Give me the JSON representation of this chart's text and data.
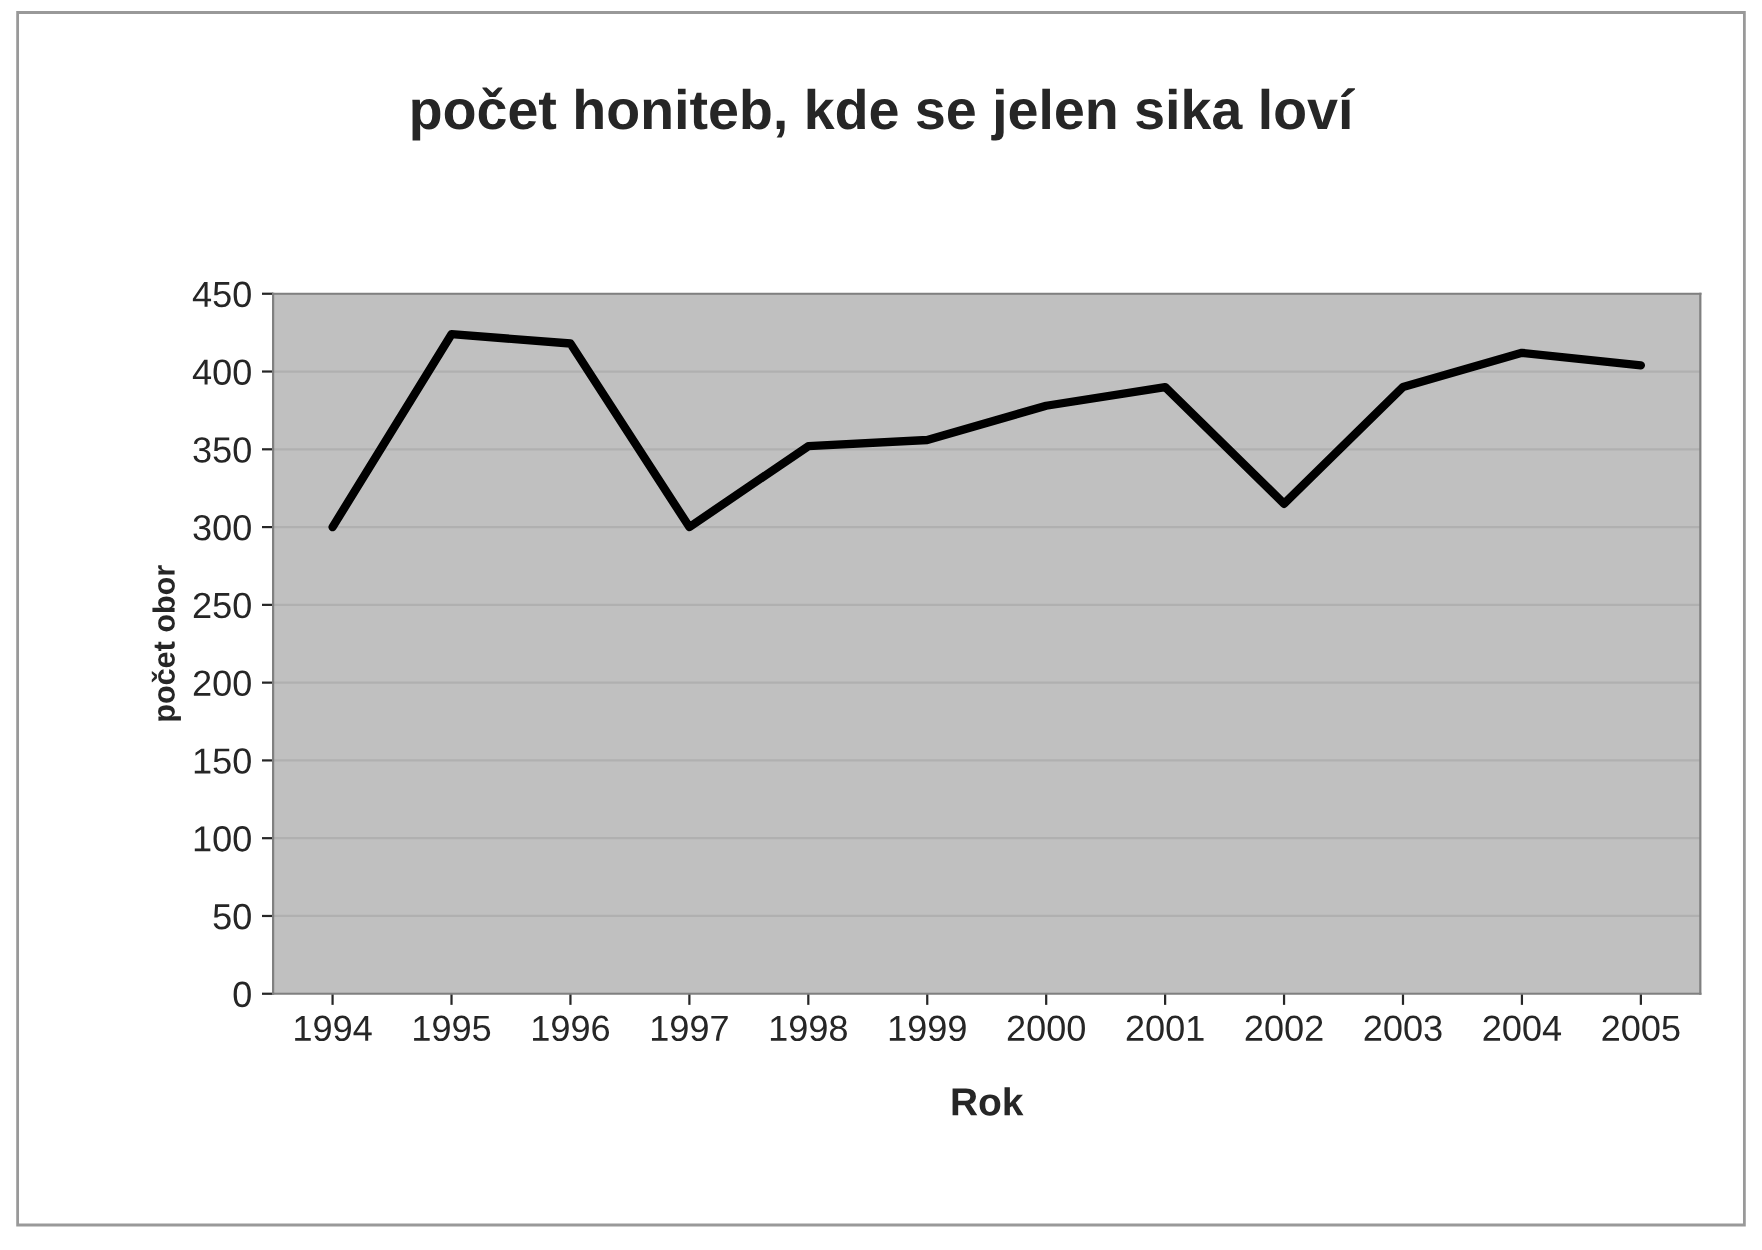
{
  "chart_data": {
    "type": "line",
    "title": "počet honiteb, kde se jelen sika loví",
    "xlabel": "Rok",
    "ylabel": "počet obor",
    "categories": [
      "1994",
      "1995",
      "1996",
      "1997",
      "1998",
      "1999",
      "2000",
      "2001",
      "2002",
      "2003",
      "2004",
      "2005"
    ],
    "series": [
      {
        "color": "#000000",
        "values": [
          300,
          424,
          418,
          300,
          352,
          356,
          378,
          390,
          315,
          390,
          412,
          404
        ]
      }
    ],
    "ylim": [
      0,
      450
    ],
    "yticks": [
      0,
      50,
      100,
      150,
      200,
      250,
      300,
      350,
      400,
      450
    ],
    "grid": "y",
    "legend": false,
    "marker": "none",
    "line_style": "solid"
  }
}
